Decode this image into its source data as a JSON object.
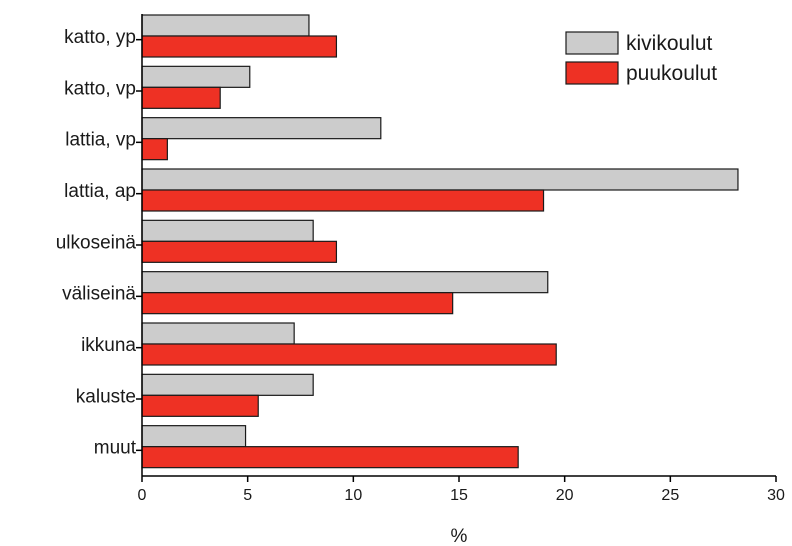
{
  "chart_data": {
    "type": "bar",
    "orientation": "horizontal",
    "categories": [
      "katto, yp",
      "katto, vp",
      "lattia, vp",
      "lattia, ap",
      "ulkoseinä",
      "väliseinä",
      "ikkuna",
      "kaluste",
      "muut"
    ],
    "series": [
      {
        "name": "kivikoulut",
        "color": "#cccccc",
        "values": [
          7.9,
          5.1,
          11.3,
          28.2,
          8.1,
          19.2,
          7.2,
          8.1,
          4.9
        ]
      },
      {
        "name": "puukoulut",
        "color": "#ee3124",
        "values": [
          9.2,
          3.7,
          1.2,
          19.0,
          9.2,
          14.7,
          19.6,
          5.5,
          17.8
        ]
      }
    ],
    "xlabel": "%",
    "ylabel": "",
    "title": "",
    "xlim": [
      0,
      30
    ],
    "xticks": [
      "0",
      "5",
      "10",
      "15",
      "20",
      "25",
      "30"
    ],
    "grid": false,
    "legend_position": "top-right"
  }
}
